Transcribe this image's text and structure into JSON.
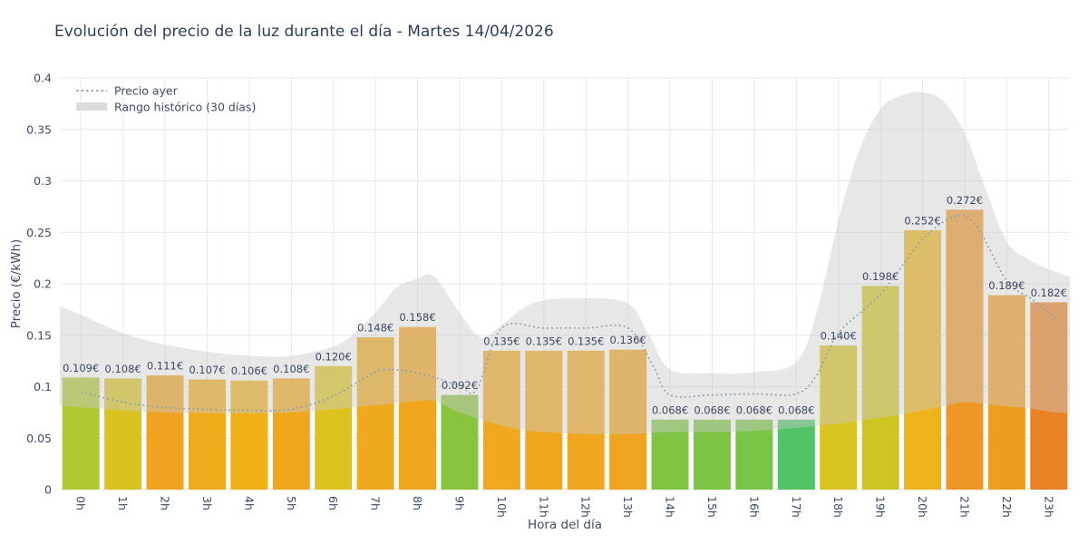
{
  "title": "Evolución del precio de la luz durante el día - Martes 14/04/2026",
  "colors": {
    "background": "#ffffff",
    "title_text": "#2d3e5d",
    "tick_text": "#3c4c68",
    "value_label_text": "#3b4a63",
    "grid": "#e3e7ef",
    "band_fill": "#c9c9c9",
    "band_legend_swatch": "#dbdbdb",
    "yesterday_line": "#8ba0b2"
  },
  "chart_data": {
    "type": "bar",
    "title": "Evolución del precio de la luz durante el día - Martes 14/04/2026",
    "xlabel": "Hora del día",
    "ylabel": "Precio (€/kWh)",
    "ylim": [
      0,
      0.4
    ],
    "yticks": [
      0,
      0.05,
      0.1,
      0.15,
      0.2,
      0.25,
      0.3,
      0.35,
      0.4
    ],
    "grid": true,
    "legend_position": "top-left",
    "categories": [
      "0h",
      "1h",
      "2h",
      "3h",
      "4h",
      "5h",
      "6h",
      "7h",
      "8h",
      "9h",
      "10h",
      "11h",
      "12h",
      "13h",
      "14h",
      "15h",
      "16h",
      "17h",
      "18h",
      "19h",
      "20h",
      "21h",
      "22h",
      "23h"
    ],
    "values": [
      0.109,
      0.108,
      0.111,
      0.107,
      0.106,
      0.108,
      0.12,
      0.148,
      0.158,
      0.092,
      0.135,
      0.135,
      0.135,
      0.136,
      0.068,
      0.068,
      0.068,
      0.068,
      0.14,
      0.198,
      0.252,
      0.272,
      0.189,
      0.182
    ],
    "value_labels": [
      "0.109€",
      "0.108€",
      "0.111€",
      "0.107€",
      "0.106€",
      "0.108€",
      "0.120€",
      "0.148€",
      "0.158€",
      "0.092€",
      "0.135€",
      "0.135€",
      "0.135€",
      "0.136€",
      "0.068€",
      "0.068€",
      "0.068€",
      "0.068€",
      "0.140€",
      "0.198€",
      "0.252€",
      "0.272€",
      "0.189€",
      "0.182€"
    ],
    "bar_colors": [
      "#b0c933",
      "#d9c31f",
      "#efa321",
      "#f0ab1b",
      "#efb018",
      "#efa81d",
      "#dcc31e",
      "#eeaa1c",
      "#efa51e",
      "#8ac43c",
      "#f0a81e",
      "#f0a71e",
      "#f0a61e",
      "#efa520",
      "#80c442",
      "#7dc444",
      "#79c546",
      "#53c466",
      "#d9c420",
      "#cfc522",
      "#eeb31a",
      "#ee9727",
      "#ee9d23",
      "#e98126"
    ],
    "series": [
      {
        "name": "Precio ayer",
        "type": "dotted-line",
        "color": "#8ba0b2",
        "points": [
          [
            0,
            0.095
          ],
          [
            1,
            0.085
          ],
          [
            2,
            0.08
          ],
          [
            3,
            0.078
          ],
          [
            4,
            0.077
          ],
          [
            5,
            0.078
          ],
          [
            6,
            0.091
          ],
          [
            7,
            0.114
          ],
          [
            7.6,
            0.116
          ],
          [
            8.4,
            0.109
          ],
          [
            9,
            0.101
          ],
          [
            9.4,
            0.097
          ],
          [
            10,
            0.157
          ],
          [
            11,
            0.157
          ],
          [
            12,
            0.157
          ],
          [
            13,
            0.157
          ],
          [
            13.6,
            0.12
          ],
          [
            14,
            0.092
          ],
          [
            15,
            0.092
          ],
          [
            16,
            0.093
          ],
          [
            17,
            0.093
          ],
          [
            17.5,
            0.112
          ],
          [
            18,
            0.152
          ],
          [
            19,
            0.19
          ],
          [
            20,
            0.243
          ],
          [
            20.8,
            0.266
          ],
          [
            21.3,
            0.255
          ],
          [
            22,
            0.203
          ],
          [
            22.6,
            0.185
          ],
          [
            23,
            0.172
          ],
          [
            23.2,
            0.165
          ]
        ]
      },
      {
        "name": "Rango histórico (30 días)",
        "type": "band",
        "color": "#c9c9c9",
        "opacity": 0.45,
        "points": [
          [
            -0.5,
            0.178,
            0.082
          ],
          [
            0,
            0.17,
            0.08
          ],
          [
            1,
            0.152,
            0.077
          ],
          [
            2,
            0.141,
            0.075
          ],
          [
            3,
            0.134,
            0.074
          ],
          [
            4,
            0.13,
            0.074
          ],
          [
            5,
            0.13,
            0.075
          ],
          [
            6,
            0.139,
            0.078
          ],
          [
            6.5,
            0.152,
            0.08
          ],
          [
            7,
            0.172,
            0.082
          ],
          [
            7.5,
            0.196,
            0.084
          ],
          [
            8,
            0.205,
            0.086
          ],
          [
            8.4,
            0.207,
            0.086
          ],
          [
            9,
            0.172,
            0.075
          ],
          [
            9.5,
            0.148,
            0.068
          ],
          [
            10,
            0.16,
            0.062
          ],
          [
            10.5,
            0.176,
            0.058
          ],
          [
            11,
            0.184,
            0.056
          ],
          [
            12,
            0.186,
            0.054
          ],
          [
            13,
            0.181,
            0.054
          ],
          [
            13.5,
            0.15,
            0.055
          ],
          [
            14,
            0.117,
            0.056
          ],
          [
            15,
            0.113,
            0.056
          ],
          [
            16,
            0.114,
            0.057
          ],
          [
            17,
            0.124,
            0.06
          ],
          [
            17.5,
            0.175,
            0.062
          ],
          [
            18,
            0.262,
            0.064
          ],
          [
            18.5,
            0.33,
            0.067
          ],
          [
            19,
            0.37,
            0.07
          ],
          [
            19.5,
            0.383,
            0.073
          ],
          [
            20,
            0.386,
            0.077
          ],
          [
            20.5,
            0.377,
            0.081
          ],
          [
            21,
            0.346,
            0.085
          ],
          [
            21.5,
            0.292,
            0.083
          ],
          [
            22,
            0.241,
            0.081
          ],
          [
            22.5,
            0.224,
            0.079
          ],
          [
            23,
            0.214,
            0.076
          ],
          [
            23.5,
            0.207,
            0.074
          ]
        ]
      }
    ]
  }
}
